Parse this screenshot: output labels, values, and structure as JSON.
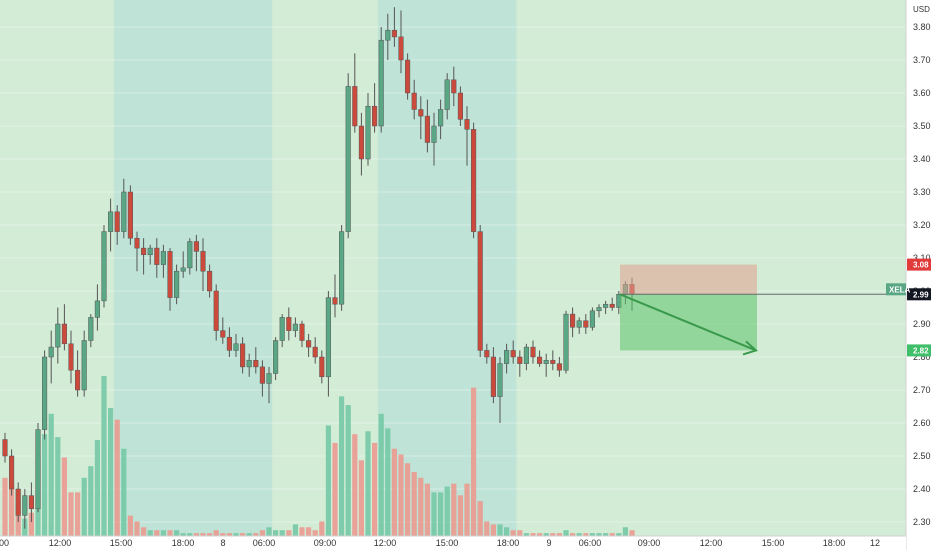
{
  "chart_data": {
    "type": "candlestick",
    "title": "",
    "symbol": "XELA",
    "currency": "USD",
    "ylim": [
      2.27,
      3.88
    ],
    "y_ticks": [
      "3.80",
      "3.70",
      "3.60",
      "3.50",
      "3.40",
      "3.30",
      "3.20",
      "3.10",
      "3.00",
      "2.90",
      "2.80",
      "2.70",
      "2.60",
      "2.50",
      "2.40",
      "2.30"
    ],
    "x_ticks": [
      "00",
      "12:00",
      "15:00",
      "18:00",
      "8",
      "06:00",
      "09:00",
      "12:00",
      "15:00",
      "18:00",
      "9",
      "06:00",
      "09:00",
      "12:00",
      "15:00",
      "18:00",
      "12"
    ],
    "sessions": [
      {
        "from": 0,
        "to": 1,
        "type": "regular"
      },
      {
        "from": 1,
        "to": 17,
        "type": "regular"
      },
      {
        "from": 17,
        "to": 41,
        "type": "extended"
      },
      {
        "from": 41,
        "to": 57,
        "type": "regular"
      },
      {
        "from": 57,
        "to": 78,
        "type": "extended"
      },
      {
        "from": 78,
        "to": 116,
        "type": "regular"
      }
    ],
    "candles": [
      [
        2.55,
        2.57,
        2.48,
        2.5
      ],
      [
        2.5,
        2.52,
        2.38,
        2.4
      ],
      [
        2.4,
        2.42,
        2.3,
        2.32
      ],
      [
        2.32,
        2.4,
        2.28,
        2.38
      ],
      [
        2.38,
        2.42,
        2.3,
        2.34
      ],
      [
        2.34,
        2.6,
        2.33,
        2.58
      ],
      [
        2.58,
        2.82,
        2.55,
        2.8
      ],
      [
        2.8,
        2.88,
        2.72,
        2.83
      ],
      [
        2.83,
        2.95,
        2.78,
        2.9
      ],
      [
        2.9,
        2.96,
        2.82,
        2.84
      ],
      [
        2.84,
        2.88,
        2.72,
        2.76
      ],
      [
        2.76,
        2.82,
        2.68,
        2.7
      ],
      [
        2.7,
        2.88,
        2.68,
        2.85
      ],
      [
        2.85,
        2.93,
        2.83,
        2.92
      ],
      [
        2.92,
        3.02,
        2.88,
        2.97
      ],
      [
        2.97,
        3.2,
        2.95,
        3.18
      ],
      [
        3.18,
        3.28,
        3.12,
        3.24
      ],
      [
        3.24,
        3.26,
        3.14,
        3.18
      ],
      [
        3.18,
        3.34,
        3.16,
        3.3
      ],
      [
        3.3,
        3.32,
        3.14,
        3.16
      ],
      [
        3.16,
        3.18,
        3.06,
        3.13
      ],
      [
        3.13,
        3.16,
        3.05,
        3.11
      ],
      [
        3.11,
        3.14,
        3.08,
        3.13
      ],
      [
        3.13,
        3.16,
        3.04,
        3.08
      ],
      [
        3.08,
        3.14,
        3.04,
        3.12
      ],
      [
        3.12,
        3.13,
        2.94,
        2.98
      ],
      [
        2.98,
        3.08,
        2.96,
        3.06
      ],
      [
        3.06,
        3.12,
        3.04,
        3.07
      ],
      [
        3.07,
        3.16,
        3.05,
        3.15
      ],
      [
        3.15,
        3.17,
        3.06,
        3.12
      ],
      [
        3.12,
        3.16,
        3.0,
        3.06
      ],
      [
        3.06,
        3.08,
        2.98,
        3.0
      ],
      [
        3.0,
        3.02,
        2.85,
        2.88
      ],
      [
        2.88,
        2.92,
        2.84,
        2.86
      ],
      [
        2.86,
        2.89,
        2.8,
        2.82
      ],
      [
        2.82,
        2.87,
        2.8,
        2.84
      ],
      [
        2.84,
        2.86,
        2.75,
        2.77
      ],
      [
        2.77,
        2.81,
        2.74,
        2.79
      ],
      [
        2.79,
        2.83,
        2.75,
        2.77
      ],
      [
        2.77,
        2.79,
        2.68,
        2.72
      ],
      [
        2.72,
        2.77,
        2.66,
        2.75
      ],
      [
        2.75,
        2.86,
        2.73,
        2.85
      ],
      [
        2.85,
        2.93,
        2.83,
        2.92
      ],
      [
        2.92,
        2.95,
        2.85,
        2.88
      ],
      [
        2.88,
        2.92,
        2.86,
        2.9
      ],
      [
        2.9,
        2.91,
        2.83,
        2.85
      ],
      [
        2.85,
        2.87,
        2.8,
        2.83
      ],
      [
        2.83,
        2.86,
        2.78,
        2.8
      ],
      [
        2.8,
        2.82,
        2.72,
        2.74
      ],
      [
        2.74,
        3.0,
        2.68,
        2.98
      ],
      [
        2.98,
        3.05,
        2.92,
        2.96
      ],
      [
        2.96,
        3.2,
        2.94,
        3.18
      ],
      [
        3.18,
        3.66,
        3.16,
        3.62
      ],
      [
        3.62,
        3.72,
        3.48,
        3.5
      ],
      [
        3.5,
        3.54,
        3.35,
        3.4
      ],
      [
        3.4,
        3.6,
        3.38,
        3.56
      ],
      [
        3.56,
        3.63,
        3.48,
        3.5
      ],
      [
        3.5,
        3.8,
        3.48,
        3.76
      ],
      [
        3.76,
        3.84,
        3.7,
        3.79
      ],
      [
        3.79,
        3.86,
        3.74,
        3.77
      ],
      [
        3.77,
        3.85,
        3.66,
        3.7
      ],
      [
        3.7,
        3.72,
        3.58,
        3.6
      ],
      [
        3.6,
        3.64,
        3.52,
        3.55
      ],
      [
        3.55,
        3.59,
        3.46,
        3.53
      ],
      [
        3.53,
        3.58,
        3.42,
        3.45
      ],
      [
        3.45,
        3.54,
        3.38,
        3.5
      ],
      [
        3.5,
        3.58,
        3.46,
        3.55
      ],
      [
        3.55,
        3.66,
        3.52,
        3.64
      ],
      [
        3.64,
        3.68,
        3.56,
        3.6
      ],
      [
        3.6,
        3.62,
        3.5,
        3.52
      ],
      [
        3.52,
        3.56,
        3.38,
        3.49
      ],
      [
        3.49,
        3.51,
        3.16,
        3.18
      ],
      [
        3.18,
        3.2,
        2.8,
        2.82
      ],
      [
        2.82,
        2.84,
        2.78,
        2.8
      ],
      [
        2.8,
        2.83,
        2.66,
        2.68
      ],
      [
        2.68,
        2.8,
        2.6,
        2.78
      ],
      [
        2.78,
        2.84,
        2.75,
        2.82
      ],
      [
        2.82,
        2.85,
        2.78,
        2.8
      ],
      [
        2.8,
        2.82,
        2.74,
        2.78
      ],
      [
        2.78,
        2.84,
        2.76,
        2.83
      ],
      [
        2.83,
        2.85,
        2.78,
        2.8
      ],
      [
        2.8,
        2.82,
        2.77,
        2.78
      ],
      [
        2.78,
        2.81,
        2.74,
        2.79
      ],
      [
        2.79,
        2.82,
        2.76,
        2.78
      ],
      [
        2.78,
        2.8,
        2.74,
        2.76
      ],
      [
        2.76,
        2.94,
        2.75,
        2.93
      ],
      [
        2.93,
        2.95,
        2.86,
        2.89
      ],
      [
        2.89,
        2.92,
        2.87,
        2.91
      ],
      [
        2.91,
        2.93,
        2.87,
        2.89
      ],
      [
        2.89,
        2.95,
        2.88,
        2.94
      ],
      [
        2.94,
        2.96,
        2.92,
        2.95
      ],
      [
        2.95,
        2.97,
        2.93,
        2.96
      ],
      [
        2.96,
        2.98,
        2.94,
        2.95
      ],
      [
        2.95,
        3.0,
        2.93,
        2.99
      ],
      [
        2.99,
        3.03,
        2.96,
        3.02
      ],
      [
        3.02,
        3.04,
        2.94,
        2.99
      ]
    ],
    "volume": [
      0.2,
      0.18,
      0.12,
      0.06,
      0.08,
      0.28,
      0.35,
      0.42,
      0.34,
      0.27,
      0.15,
      0.15,
      0.2,
      0.24,
      0.33,
      0.55,
      0.44,
      0.4,
      0.3,
      0.07,
      0.05,
      0.03,
      0.02,
      0.02,
      0.02,
      0.02,
      0.02,
      0.01,
      0.01,
      0.01,
      0.01,
      0.01,
      0.02,
      0.01,
      0.01,
      0.01,
      0.01,
      0.01,
      0.01,
      0.02,
      0.03,
      0.02,
      0.02,
      0.02,
      0.04,
      0.03,
      0.03,
      0.02,
      0.05,
      0.38,
      0.32,
      0.48,
      0.45,
      0.35,
      0.26,
      0.36,
      0.32,
      0.42,
      0.37,
      0.3,
      0.28,
      0.25,
      0.22,
      0.2,
      0.18,
      0.15,
      0.15,
      0.17,
      0.18,
      0.14,
      0.18,
      0.51,
      0.12,
      0.05,
      0.04,
      0.04,
      0.03,
      0.02,
      0.02,
      0.01,
      0.01,
      0.01,
      0.01,
      0.01,
      0.01,
      0.02,
      0.01,
      0.01,
      0.01,
      0.01,
      0.01,
      0.01,
      0.01,
      0.01,
      0.03,
      0.02
    ],
    "last_price": "2.99",
    "position": {
      "type": "short",
      "stop": "3.08",
      "entry": "2.99",
      "target": "2.82"
    },
    "colors": {
      "up": "#5aa786",
      "down": "#cc4a3c",
      "stop_tag": "#e03a3a",
      "target_tag": "#3fbf6a",
      "price_tag": "#131722",
      "symbol_tag": "#5aa786"
    }
  }
}
